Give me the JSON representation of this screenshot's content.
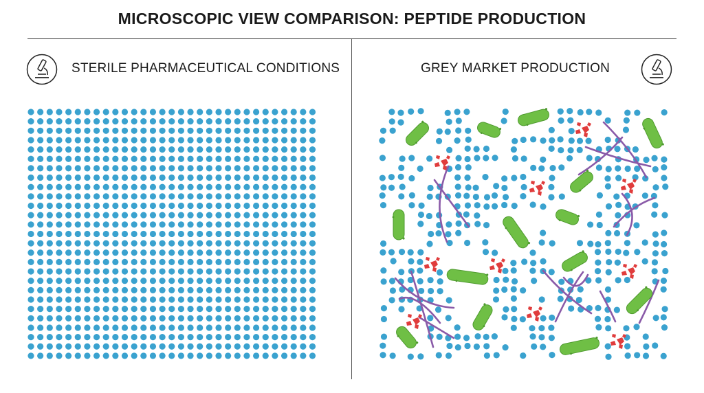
{
  "title": "MICROSCOPIC VIEW COMPARISON: PEPTIDE PRODUCTION",
  "panels": {
    "left": {
      "label": "STERILE PHARMACEUTICAL CONDITIONS",
      "icon": "microscope-icon"
    },
    "right": {
      "label": "GREY MARKET PRODUCTION",
      "icon": "microscope-icon"
    }
  },
  "colors": {
    "peptide": "#3aa2cf",
    "bacteria": "#6fbf45",
    "debris": "#e03c3c",
    "fibers": "#8a5aa8",
    "text": "#1a1a1a"
  }
}
